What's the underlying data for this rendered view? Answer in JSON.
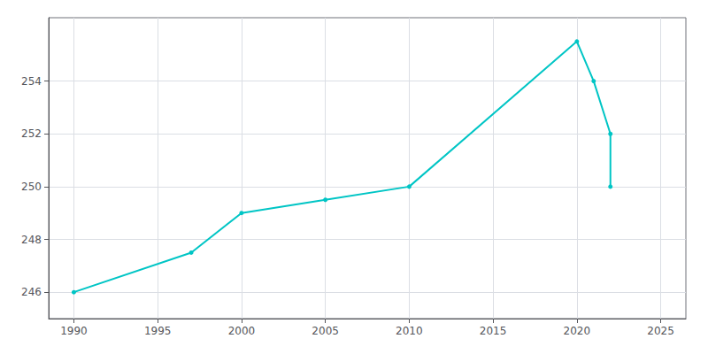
{
  "chart_data": {
    "type": "line",
    "x": [
      1990,
      1997,
      2000,
      2005,
      2010,
      2020,
      2021,
      2022,
      2022
    ],
    "values": [
      246,
      247.5,
      249,
      249.5,
      250,
      255.5,
      254,
      252,
      250
    ],
    "color": "#00C5C5",
    "marker": "circle",
    "xlim": [
      1988.5,
      2026.5
    ],
    "ylim": [
      245.0,
      256.4
    ],
    "xticks": [
      1990,
      1995,
      2000,
      2005,
      2010,
      2015,
      2020,
      2025
    ],
    "yticks": [
      246,
      248,
      250,
      252,
      254
    ],
    "grid": true
  }
}
